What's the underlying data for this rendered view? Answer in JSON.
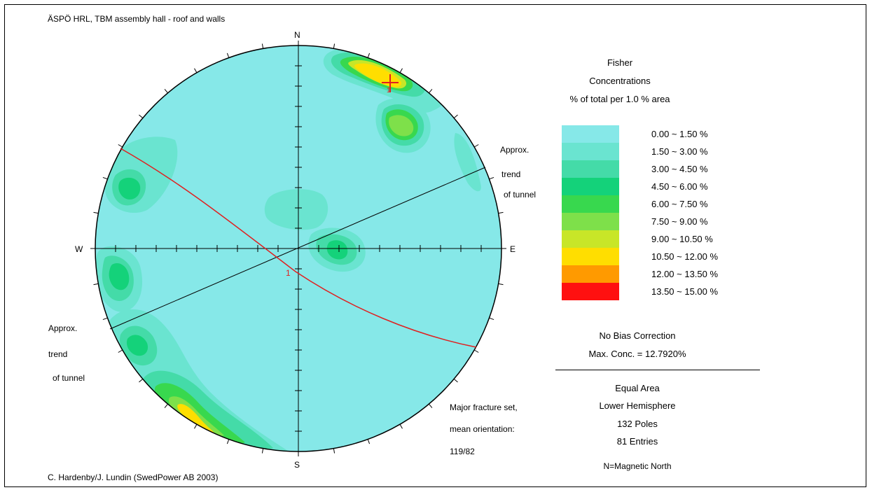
{
  "title": "ÄSPÖ HRL, TBM assembly hall - roof and walls",
  "credit": "C. Hardenby/J. Lundin (SwedPower AB 2003)",
  "compass": {
    "n": "N",
    "s": "S",
    "e": "E",
    "w": "W"
  },
  "annotations": {
    "trend_ne": [
      "Approx.",
      "trend",
      "of tunnel"
    ],
    "trend_sw": [
      "Approx.",
      "trend",
      "of tunnel"
    ],
    "fracture": [
      "Major fracture set,",
      "mean orientation:",
      "119/82"
    ],
    "plane_label": "1",
    "pole_label": "1"
  },
  "legend": {
    "heading": [
      "Fisher",
      "Concentrations",
      "% of total per 1.0 % area"
    ],
    "items": [
      {
        "label": "0.00 ~  1.50 %",
        "color": "#86e8e8"
      },
      {
        "label": "1.50 ~  3.00 %",
        "color": "#6ae4d0"
      },
      {
        "label": "3.00 ~  4.50 %",
        "color": "#44dba8"
      },
      {
        "label": "4.50 ~  6.00 %",
        "color": "#14d27a"
      },
      {
        "label": "6.00 ~  7.50 %",
        "color": "#38d84e"
      },
      {
        "label": "7.50 ~  9.00 %",
        "color": "#7ee04a"
      },
      {
        "label": "9.00 ~ 10.50 %",
        "color": "#c8e628"
      },
      {
        "label": "10.50 ~ 12.00 %",
        "color": "#ffde00"
      },
      {
        "label": "12.00 ~ 13.50 %",
        "color": "#ff9a00"
      },
      {
        "label": "13.50 ~ 15.00 %",
        "color": "#ff1010"
      }
    ]
  },
  "info": {
    "bias": "No Bias Correction",
    "max_conc": "Max. Conc. = 12.7920%",
    "projection": "Equal Area",
    "hemisphere": "Lower Hemisphere",
    "poles": "132 Poles",
    "entries": "81 Entries",
    "north": "N=Magnetic North"
  },
  "colors": {
    "circle_fill": "#86e8e8",
    "great_circle": "#e02020",
    "axes": "#000000"
  }
}
